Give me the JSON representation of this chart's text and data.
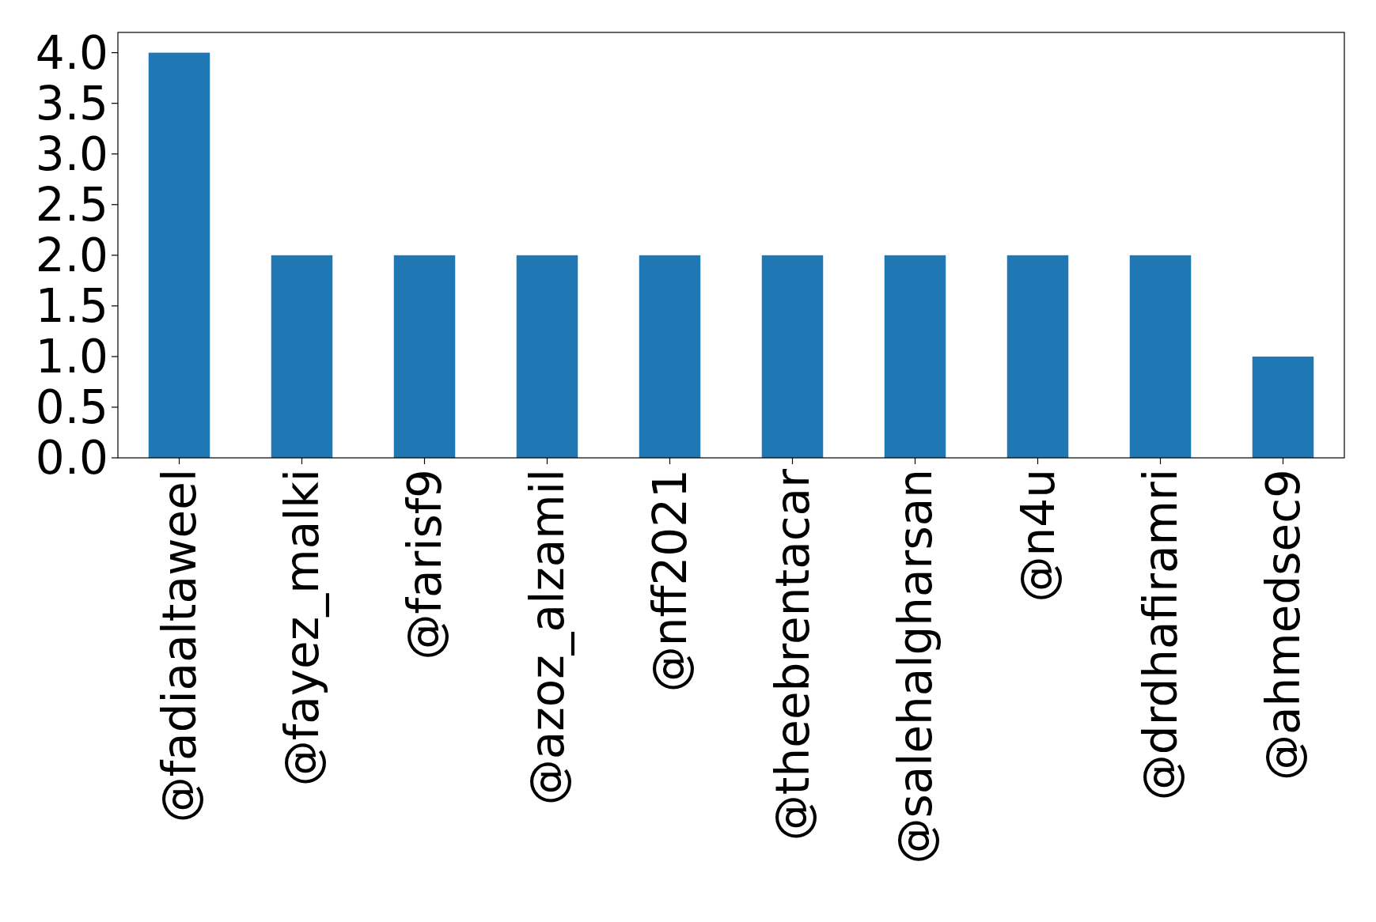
{
  "chart_data": {
    "type": "bar",
    "categories": [
      "@fadiaaltaweel",
      "@fayez_malki",
      "@farisf9",
      "@azoz_alzamil",
      "@nff2021",
      "@theebrentacar",
      "@salehalgharsan",
      "@n4u",
      "@drdhafiramri",
      "@ahmedsec9"
    ],
    "values": [
      4,
      2,
      2,
      2,
      2,
      2,
      2,
      2,
      2,
      1
    ],
    "color": "#1f77b4",
    "ylim": [
      0,
      4.2
    ],
    "yticks": [
      {
        "value": 0,
        "label": "0.0"
      },
      {
        "value": 0.5,
        "label": "0.5"
      },
      {
        "value": 1,
        "label": "1.0"
      },
      {
        "value": 1.5,
        "label": "1.5"
      },
      {
        "value": 2,
        "label": "2.0"
      },
      {
        "value": 2.5,
        "label": "2.5"
      },
      {
        "value": 3,
        "label": "3.0"
      },
      {
        "value": 3.5,
        "label": "3.5"
      },
      {
        "value": 4,
        "label": "4.0"
      }
    ],
    "grid": false
  }
}
